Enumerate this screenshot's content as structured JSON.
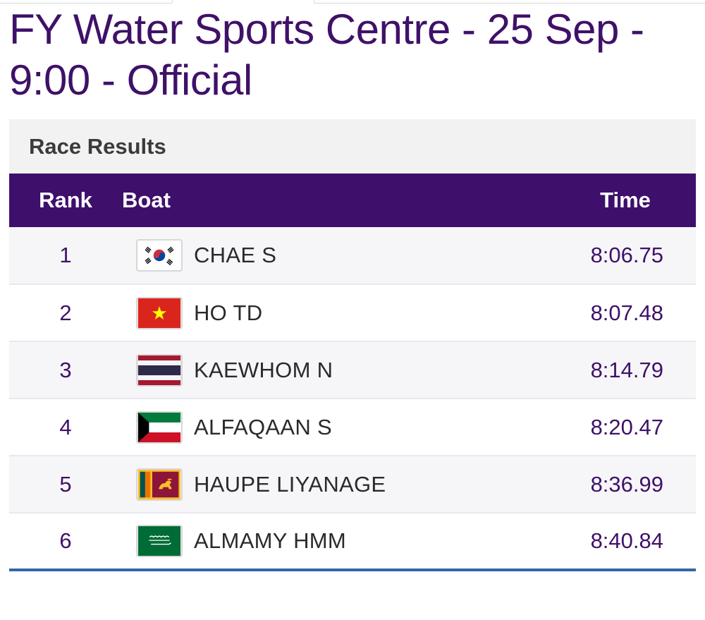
{
  "page": {
    "title": "FY Water Sports Centre - 25 Sep - 9:00 - Official"
  },
  "results": {
    "heading": "Race Results",
    "columns": {
      "rank": "Rank",
      "boat": "Boat",
      "time": "Time"
    },
    "rows": [
      {
        "rank": "1",
        "flag_icon": "south-korea-flag-icon",
        "name": "CHAE S",
        "time": "8:06.75"
      },
      {
        "rank": "2",
        "flag_icon": "vietnam-flag-icon",
        "name": "HO TD",
        "time": "8:07.48"
      },
      {
        "rank": "3",
        "flag_icon": "thailand-flag-icon",
        "name": "KAEWHOM N",
        "time": "8:14.79"
      },
      {
        "rank": "4",
        "flag_icon": "kuwait-flag-icon",
        "name": "ALFAQAAN S",
        "time": "8:20.47"
      },
      {
        "rank": "5",
        "flag_icon": "sri-lanka-flag-icon",
        "name": "HAUPE LIYANAGE",
        "time": "8:36.99"
      },
      {
        "rank": "6",
        "flag_icon": "saudi-arabia-flag-icon",
        "name": "ALMAMY HMM",
        "time": "8:40.84"
      }
    ]
  },
  "colors": {
    "brand_purple": "#3e0f6b",
    "title_purple": "#3f1168",
    "table_bottom_rule": "#3366a8"
  }
}
